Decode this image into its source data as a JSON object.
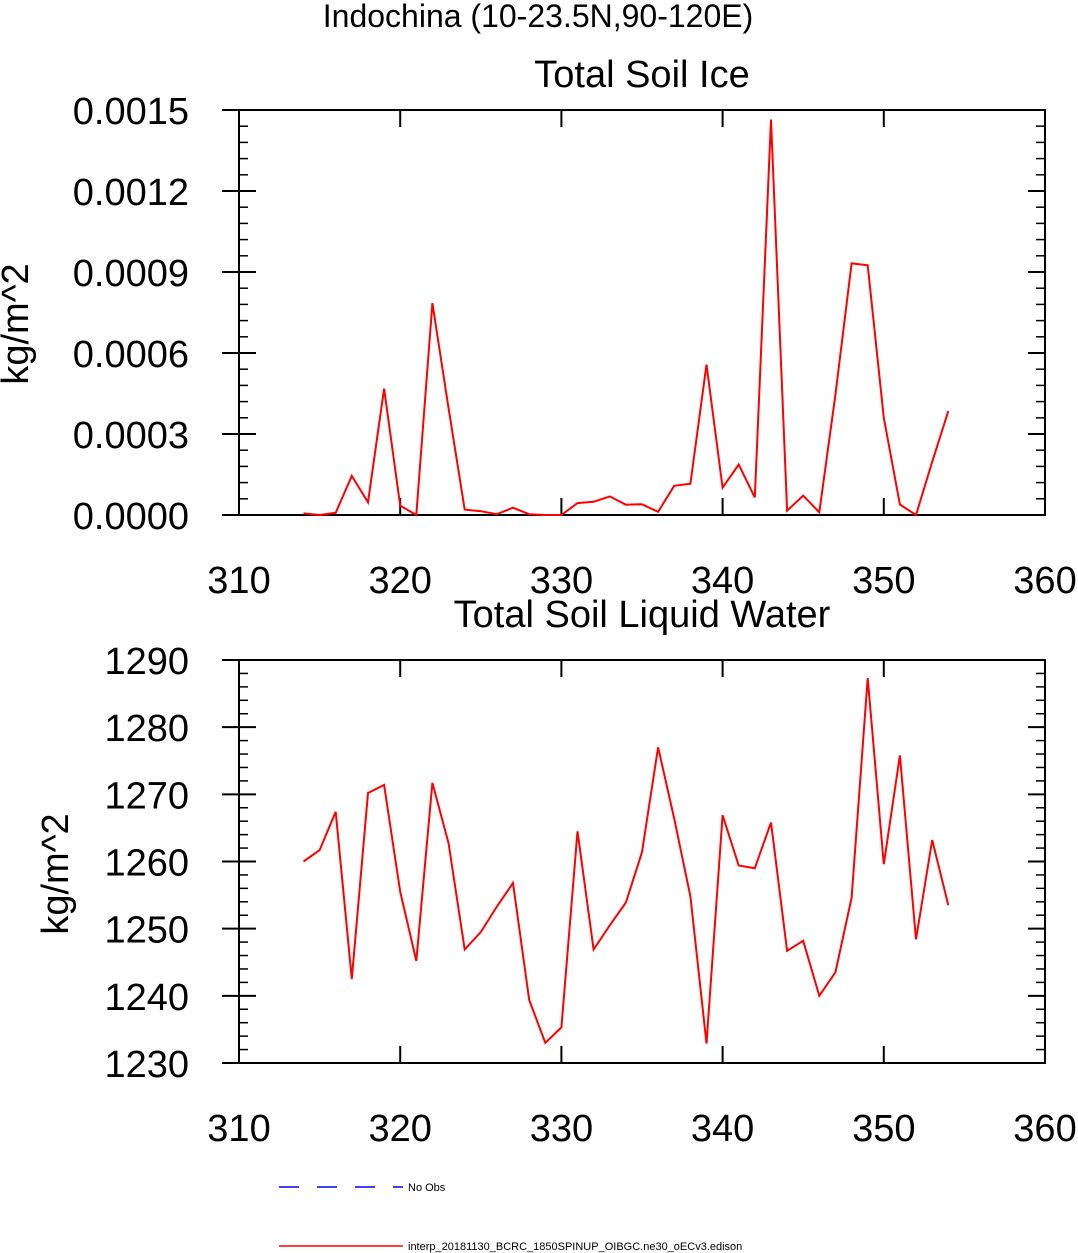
{
  "figure": {
    "title": "Indochina (10-23.5N,90-120E)"
  },
  "colors": {
    "model_line": "#ff0000",
    "obs_line": "#0000ff",
    "axis": "#000000"
  },
  "chart_data": [
    {
      "type": "line",
      "title": "Total Soil Ice",
      "xlabel": "",
      "ylabel": "kg/m^2",
      "xlim": [
        310,
        360
      ],
      "ylim": [
        0,
        0.0015
      ],
      "xticks": [
        "310",
        "320",
        "330",
        "340",
        "350",
        "360"
      ],
      "yticks": [
        "0.0000",
        "0.0003",
        "0.0006",
        "0.0009",
        "0.0012",
        "0.0015"
      ],
      "grid": false,
      "series": [
        {
          "name": "interp_20181130_BCRC_1850SPINUP_OIBGC.ne30_oECv3.edison",
          "color": "#ff0000",
          "x": [
            314,
            315,
            316,
            317,
            318,
            319,
            320,
            321,
            322,
            323,
            324,
            325,
            326,
            327,
            328,
            329,
            330,
            331,
            332,
            333,
            334,
            335,
            336,
            337,
            338,
            339,
            340,
            341,
            342,
            343,
            344,
            345,
            346,
            347,
            348,
            349,
            350,
            351,
            352,
            353,
            354
          ],
          "y": [
            6e-06,
            0.0,
            8e-06,
            0.000145,
            4.7e-05,
            0.000468,
            3.5e-05,
            0.0,
            0.000785,
            0.000395,
            2e-05,
            1.4e-05,
            3e-06,
            2.7e-05,
            3e-06,
            0.0,
            0.0,
            4.4e-05,
            4.9e-05,
            6.9e-05,
            3.8e-05,
            4e-05,
            1.2e-05,
            0.000108,
            0.000116,
            0.000557,
            0.000101,
            0.000187,
            6.5e-05,
            0.001465,
            1.6e-05,
            7.2e-05,
            1e-05,
            0.000445,
            0.000932,
            0.000925,
            0.00036,
            3.9e-05,
            0.0,
            0.000197,
            0.000385
          ]
        }
      ]
    },
    {
      "type": "line",
      "title": "Total Soil Liquid Water",
      "xlabel": "",
      "ylabel": "kg/m^2",
      "xlim": [
        310,
        360
      ],
      "ylim": [
        1230,
        1290
      ],
      "xticks": [
        "310",
        "320",
        "330",
        "340",
        "350",
        "360"
      ],
      "yticks": [
        "1230",
        "1240",
        "1250",
        "1260",
        "1270",
        "1280",
        "1290"
      ],
      "grid": false,
      "series": [
        {
          "name": "interp_20181130_BCRC_1850SPINUP_OIBGC.ne30_oECv3.edison",
          "color": "#ff0000",
          "x": [
            314,
            315,
            316,
            317,
            318,
            319,
            320,
            321,
            322,
            323,
            324,
            325,
            326,
            327,
            328,
            329,
            330,
            331,
            332,
            333,
            334,
            335,
            336,
            337,
            338,
            339,
            340,
            341,
            342,
            343,
            344,
            345,
            346,
            347,
            348,
            349,
            350,
            351,
            352,
            353,
            354
          ],
          "y": [
            1260.0,
            1261.7,
            1267.4,
            1242.5,
            1270.2,
            1271.4,
            1255.5,
            1245.2,
            1271.7,
            1262.7,
            1246.9,
            1249.5,
            1253.3,
            1256.8,
            1239.4,
            1233.0,
            1235.3,
            1264.5,
            1246.9,
            1250.5,
            1253.9,
            1261.4,
            1277.0,
            1266.4,
            1254.8,
            1232.9,
            1266.9,
            1259.4,
            1259.0,
            1265.8,
            1246.7,
            1248.2,
            1240.0,
            1243.5,
            1254.6,
            1287.3,
            1259.6,
            1275.8,
            1248.4,
            1263.2,
            1253.5
          ]
        }
      ]
    }
  ],
  "legend": {
    "entries": [
      {
        "label": "No Obs",
        "color": "#0000ff",
        "style": "dashed"
      },
      {
        "label": "interp_20181130_BCRC_1850SPINUP_OIBGC.ne30_oECv3.edison",
        "color": "#ff0000",
        "style": "solid"
      }
    ]
  }
}
